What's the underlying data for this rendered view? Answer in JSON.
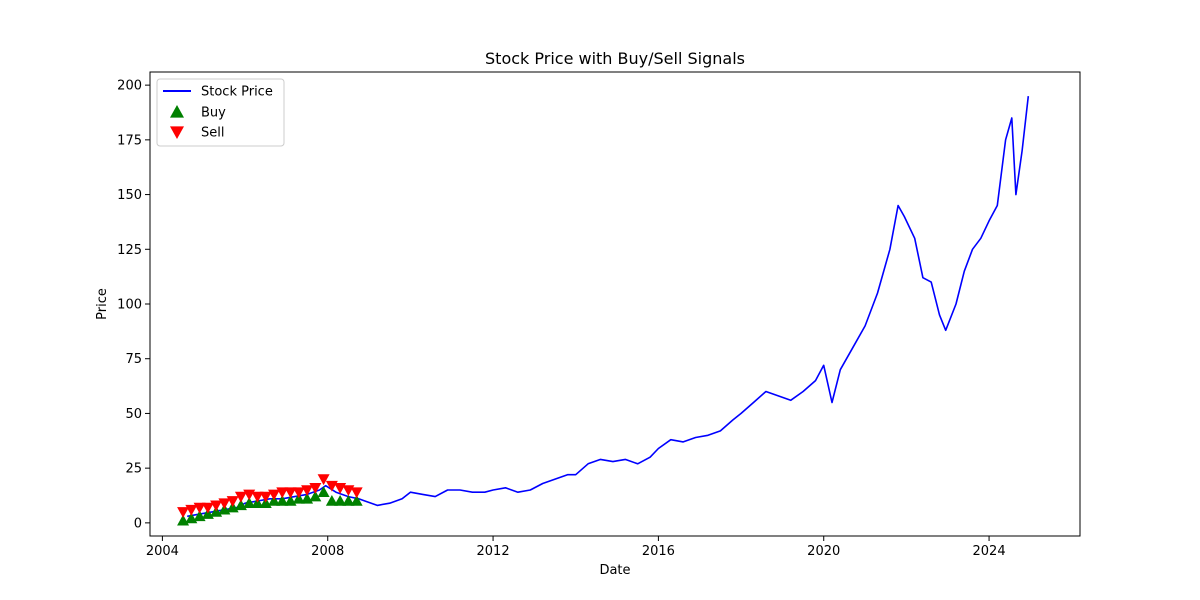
{
  "chart_data": {
    "type": "line",
    "title": "Stock Price with Buy/Sell Signals",
    "xlabel": "Date",
    "ylabel": "Price",
    "x_ticks": [
      "2004",
      "2008",
      "2012",
      "2016",
      "2020",
      "2024"
    ],
    "y_ticks": [
      "0",
      "25",
      "50",
      "75",
      "100",
      "125",
      "150",
      "175",
      "200"
    ],
    "xlim": [
      2003.7,
      2026.2
    ],
    "ylim": [
      -6,
      206
    ],
    "grid": false,
    "legend_placement": "top-left",
    "legend": [
      {
        "label": "Stock Price",
        "marker": "line",
        "color": "#0000ff"
      },
      {
        "label": "Buy",
        "marker": "triangle-up",
        "color": "#008000"
      },
      {
        "label": "Sell",
        "marker": "triangle-down",
        "color": "#ff0000"
      }
    ],
    "series": [
      {
        "name": "Stock Price",
        "color": "#0000ff",
        "x": [
          2004.6,
          2004.9,
          2005.2,
          2005.5,
          2005.8,
          2006.0,
          2006.3,
          2006.6,
          2006.9,
          2007.2,
          2007.5,
          2007.8,
          2007.95,
          2008.2,
          2008.5,
          2008.75,
          2008.9,
          2009.2,
          2009.5,
          2009.8,
          2010.0,
          2010.3,
          2010.6,
          2010.9,
          2011.2,
          2011.5,
          2011.8,
          2012.0,
          2012.3,
          2012.6,
          2012.9,
          2013.2,
          2013.5,
          2013.8,
          2014.0,
          2014.3,
          2014.6,
          2014.9,
          2015.2,
          2015.5,
          2015.8,
          2016.0,
          2016.3,
          2016.6,
          2016.9,
          2017.2,
          2017.5,
          2017.8,
          2018.0,
          2018.3,
          2018.6,
          2018.9,
          2019.2,
          2019.5,
          2019.8,
          2020.0,
          2020.2,
          2020.4,
          2020.7,
          2021.0,
          2021.3,
          2021.6,
          2021.8,
          2021.95,
          2022.2,
          2022.4,
          2022.6,
          2022.8,
          2022.95,
          2023.2,
          2023.4,
          2023.6,
          2023.8,
          2024.0,
          2024.2,
          2024.4,
          2024.55,
          2024.65,
          2024.8,
          2024.95
        ],
        "values": [
          3,
          4,
          5,
          6,
          7,
          9,
          10,
          11,
          11,
          12,
          13,
          15,
          17,
          14,
          12,
          11,
          10,
          8,
          9,
          11,
          14,
          13,
          12,
          15,
          15,
          14,
          14,
          15,
          16,
          14,
          15,
          18,
          20,
          22,
          22,
          27,
          29,
          28,
          29,
          27,
          30,
          34,
          38,
          37,
          39,
          40,
          42,
          47,
          50,
          55,
          60,
          58,
          56,
          60,
          65,
          72,
          55,
          70,
          80,
          90,
          105,
          125,
          145,
          140,
          130,
          112,
          110,
          95,
          88,
          100,
          115,
          125,
          130,
          138,
          145,
          175,
          185,
          150,
          170,
          195
        ]
      },
      {
        "name": "Buy",
        "color": "#008000",
        "marker": "triangle-up",
        "x": [
          2004.5,
          2004.7,
          2004.9,
          2005.1,
          2005.3,
          2005.5,
          2005.7,
          2005.9,
          2006.1,
          2006.3,
          2006.5,
          2006.7,
          2006.9,
          2007.1,
          2007.3,
          2007.5,
          2007.7,
          2007.9,
          2008.1,
          2008.3,
          2008.5,
          2008.7
        ],
        "values": [
          1,
          2,
          3,
          4,
          5,
          6,
          7,
          8,
          9,
          9,
          9,
          10,
          10,
          10,
          11,
          11,
          12,
          14,
          10,
          10,
          10,
          10
        ]
      },
      {
        "name": "Sell",
        "color": "#ff0000",
        "marker": "triangle-down",
        "x": [
          2004.5,
          2004.7,
          2004.9,
          2005.1,
          2005.3,
          2005.5,
          2005.7,
          2005.9,
          2006.1,
          2006.3,
          2006.5,
          2006.7,
          2006.9,
          2007.1,
          2007.3,
          2007.5,
          2007.7,
          2007.9,
          2008.1,
          2008.3,
          2008.5,
          2008.7
        ],
        "values": [
          5,
          6,
          7,
          7,
          8,
          9,
          10,
          12,
          13,
          12,
          12,
          13,
          14,
          14,
          14,
          15,
          16,
          20,
          17,
          16,
          15,
          14
        ]
      }
    ]
  }
}
